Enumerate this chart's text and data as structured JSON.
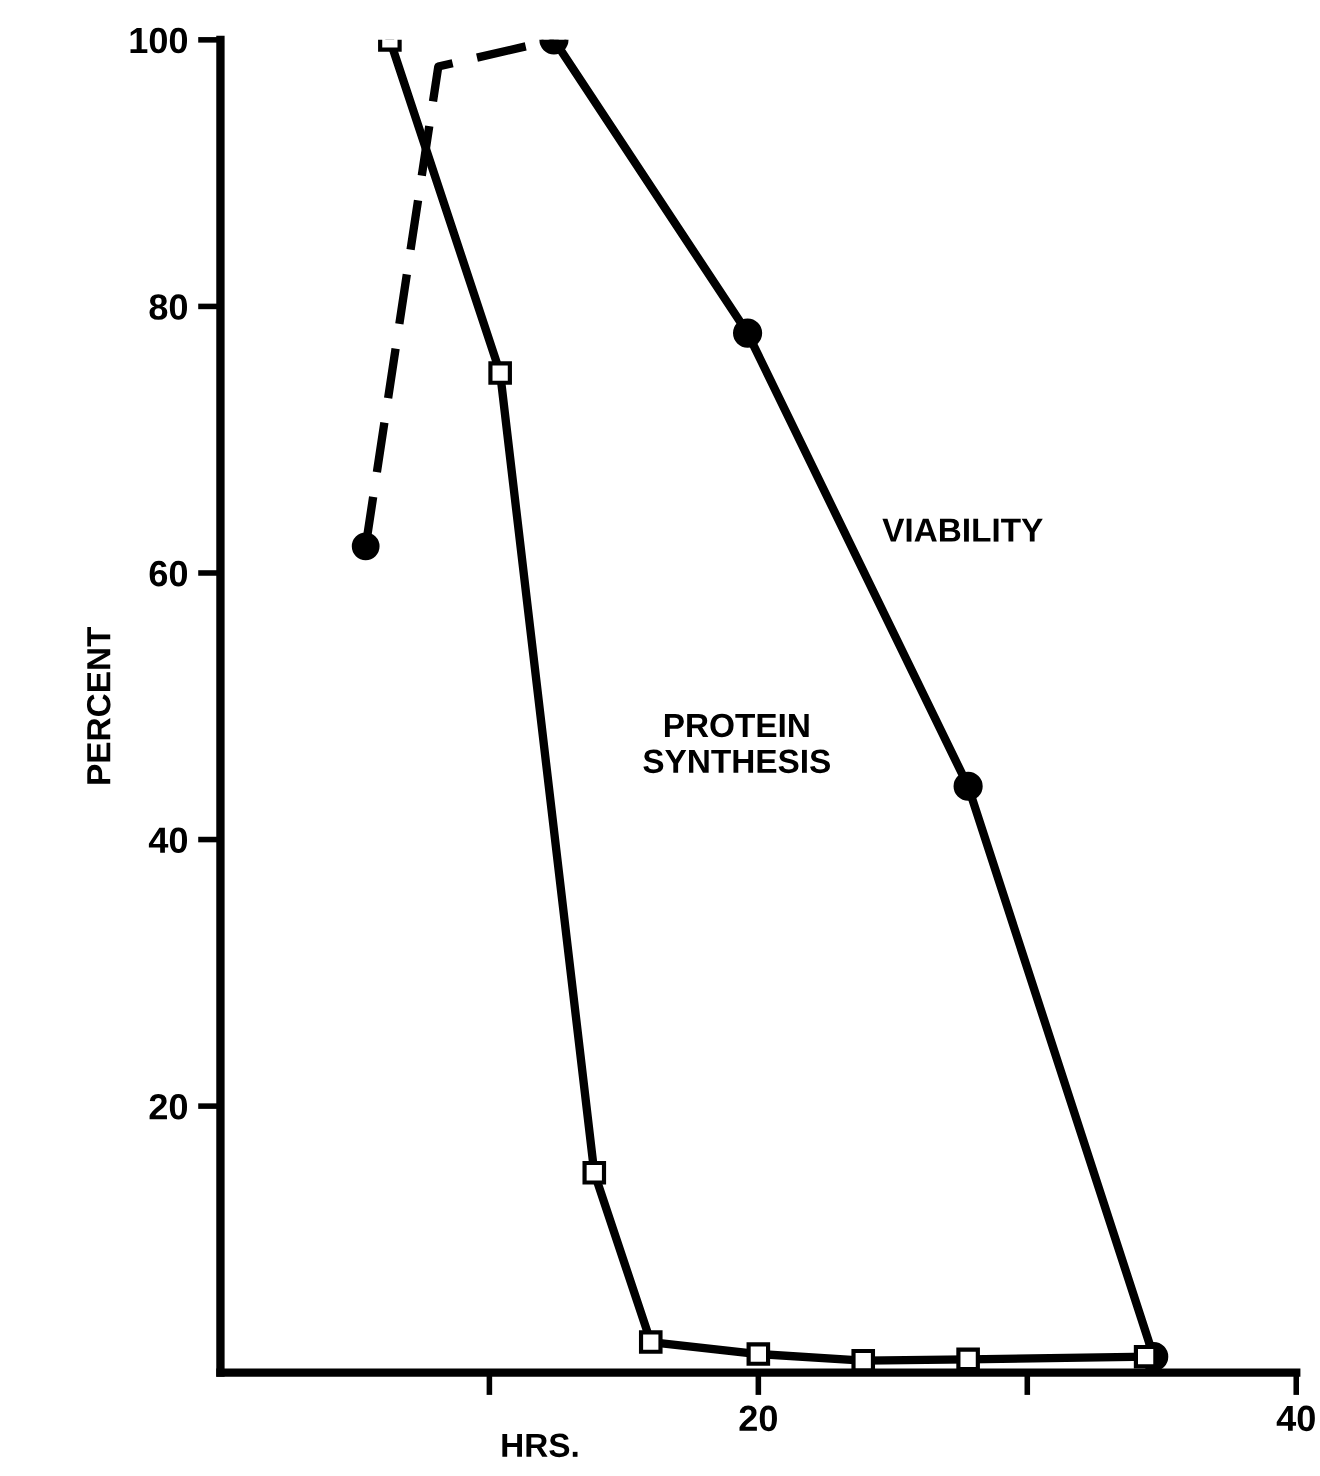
{
  "chart_data": {
    "type": "line",
    "xlabel": "HRS.",
    "ylabel": "PERCENT",
    "x": [
      6.3,
      10.4,
      13.9,
      16.0,
      20.0,
      23.9,
      27.8,
      34.4
    ],
    "series": [
      {
        "color": "#000000",
        "marker": "square",
        "line_style": "solid",
        "values": [
          100,
          75,
          15,
          2.3,
          1.4,
          0.9,
          1.0,
          1.2
        ]
      },
      {
        "color": "#000000",
        "marker": "none",
        "line_style": "dashed",
        "x": [
          5.4,
          8.1,
          12.4
        ],
        "values": [
          62,
          98,
          100
        ]
      },
      {
        "color": "#000000",
        "marker": "circle",
        "line_style": "solid",
        "x": [
          12.4,
          19.6,
          27.8,
          34.7
        ],
        "values": [
          100,
          78,
          44,
          1.2
        ]
      },
      {
        "type": "scatter",
        "color": "#000000",
        "marker": "circle",
        "x": [
          5.4
        ],
        "values": [
          62
        ]
      }
    ],
    "annotations": [
      "VIABILITY",
      "PROTEIN\nSYNTHESIS"
    ],
    "xlim": [
      0,
      40
    ],
    "xticks": [
      {
        "value": 10,
        "label": null
      },
      20,
      {
        "value": 30,
        "label": null
      },
      40
    ],
    "ylim": [
      0,
      100
    ],
    "yticks": [
      20,
      40,
      60,
      80,
      100
    ],
    "grid": false
  }
}
